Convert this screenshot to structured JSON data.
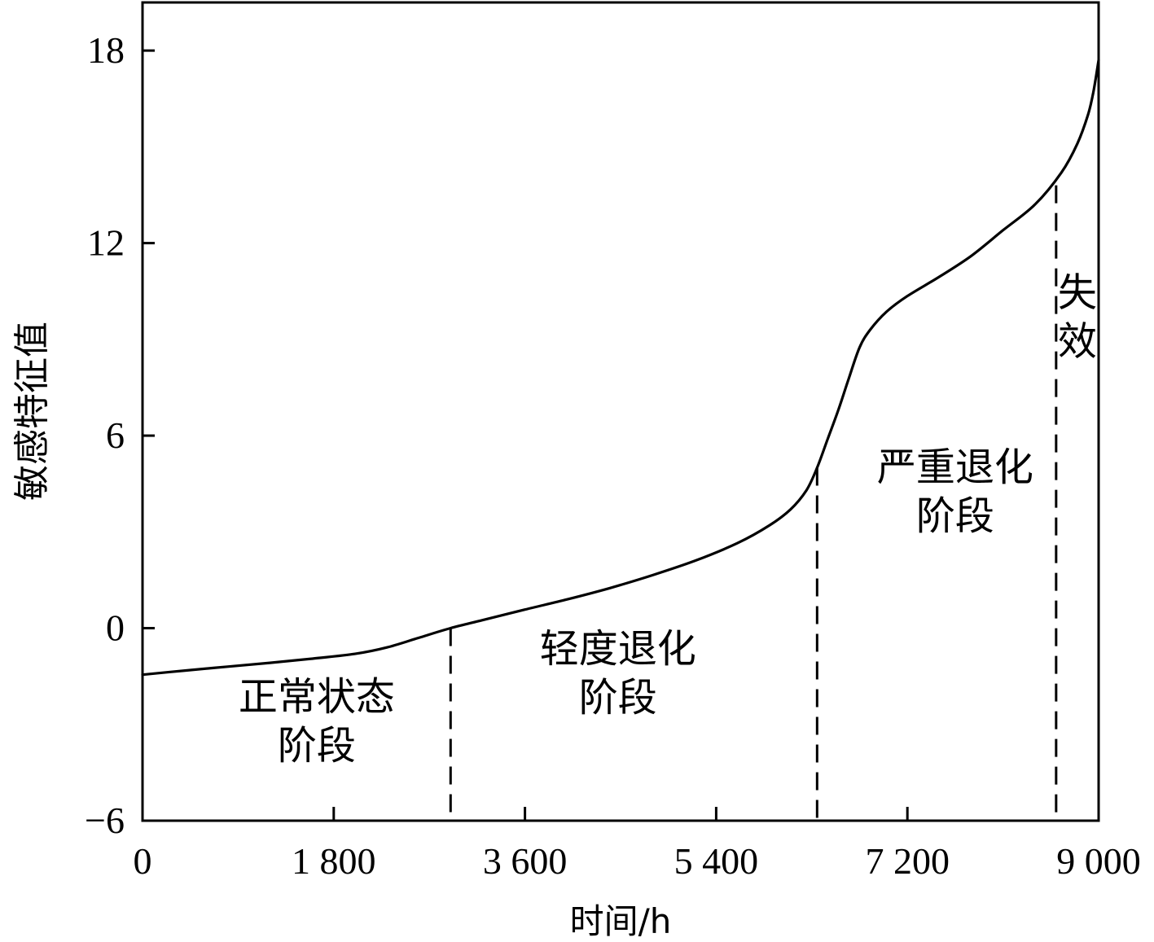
{
  "chart_data": {
    "type": "line",
    "xlabel": "时间/h",
    "ylabel": "敏感特征值",
    "xlim": [
      0,
      9000
    ],
    "ylim": [
      -6,
      19.5
    ],
    "x_ticks": [
      {
        "value": 0,
        "label": "0"
      },
      {
        "value": 1800,
        "label": "1 800"
      },
      {
        "value": 3600,
        "label": "3 600"
      },
      {
        "value": 5400,
        "label": "5 400"
      },
      {
        "value": 7200,
        "label": "7 200"
      },
      {
        "value": 9000,
        "label": "9 000"
      }
    ],
    "y_ticks": [
      {
        "value": -6,
        "label": "−6"
      },
      {
        "value": 0,
        "label": "0"
      },
      {
        "value": 6,
        "label": "6"
      },
      {
        "value": 12,
        "label": "12"
      },
      {
        "value": 18,
        "label": "18"
      }
    ],
    "series": [
      {
        "points": [
          [
            0,
            -1.45
          ],
          [
            400,
            -1.32
          ],
          [
            800,
            -1.2
          ],
          [
            1200,
            -1.08
          ],
          [
            1600,
            -0.95
          ],
          [
            2000,
            -0.8
          ],
          [
            2300,
            -0.6
          ],
          [
            2600,
            -0.3
          ],
          [
            2900,
            0.0
          ],
          [
            3200,
            0.25
          ],
          [
            3600,
            0.58
          ],
          [
            4000,
            0.9
          ],
          [
            4400,
            1.25
          ],
          [
            4800,
            1.65
          ],
          [
            5200,
            2.1
          ],
          [
            5600,
            2.65
          ],
          [
            5900,
            3.2
          ],
          [
            6100,
            3.7
          ],
          [
            6250,
            4.3
          ],
          [
            6350,
            5.0
          ],
          [
            6450,
            5.9
          ],
          [
            6550,
            6.8
          ],
          [
            6650,
            7.8
          ],
          [
            6750,
            8.75
          ],
          [
            6850,
            9.3
          ],
          [
            7000,
            9.85
          ],
          [
            7200,
            10.35
          ],
          [
            7500,
            10.95
          ],
          [
            7800,
            11.6
          ],
          [
            8100,
            12.4
          ],
          [
            8400,
            13.2
          ],
          [
            8650,
            14.2
          ],
          [
            8800,
            15.1
          ],
          [
            8900,
            16.0
          ],
          [
            8950,
            16.7
          ],
          [
            9000,
            17.7
          ]
        ]
      }
    ],
    "stage_boundaries": [
      {
        "x": 2900,
        "y_top": 0.0
      },
      {
        "x": 6350,
        "y_top": 5.0
      },
      {
        "x": 8600,
        "y_top": 13.8
      }
    ],
    "annotations": [
      {
        "lines": [
          "正常状态",
          "阶段"
        ],
        "x": 1640,
        "y": -2.55
      },
      {
        "lines": [
          "轻度退化",
          "阶段"
        ],
        "x": 4475,
        "y": -1.05
      },
      {
        "lines": [
          "严重退化",
          "阶段"
        ],
        "x": 7650,
        "y": 4.6
      },
      {
        "lines": [
          "失",
          "效"
        ],
        "x": 8800,
        "y": 10.05
      }
    ]
  }
}
